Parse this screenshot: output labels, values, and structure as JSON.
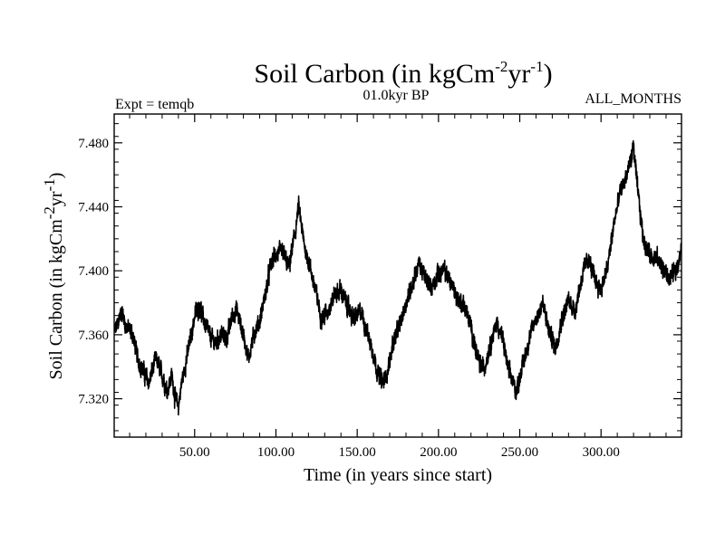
{
  "chart_data": {
    "type": "line",
    "title": {
      "text": "Soil Carbon (in kgCm",
      "sup1": "-2",
      "mid": "yr",
      "sup2": "-1",
      "end": ")"
    },
    "subtitle_left": "Expt = temqb",
    "subtitle_center": "01.0kyr BP",
    "subtitle_right": "ALL_MONTHS",
    "xlabel": "Time (in years since start)",
    "ylabel": {
      "text": "Soil Carbon (in kgCm",
      "sup1": "-2",
      "mid": "yr",
      "sup2": "-1",
      "end": ")"
    },
    "xlim": [
      0.5,
      349.5
    ],
    "ylim": [
      7.296,
      7.498
    ],
    "xticks": [
      50,
      100,
      150,
      200,
      250,
      300
    ],
    "xtick_labels": [
      "50.00",
      "100.00",
      "150.00",
      "200.00",
      "250.00",
      "300.00"
    ],
    "yticks": [
      7.32,
      7.36,
      7.4,
      7.44,
      7.48
    ],
    "ytick_labels": [
      "7.320",
      "7.360",
      "7.400",
      "7.440",
      "7.480"
    ],
    "grid": false,
    "series_color": "#000000",
    "series": [
      {
        "name": "",
        "sampling": "monthly",
        "x": [
          1,
          3,
          5,
          8,
          12,
          15,
          18,
          22,
          26,
          30,
          33,
          36,
          38,
          40,
          42,
          45,
          48,
          50,
          53,
          56,
          60,
          63,
          66,
          70,
          73,
          76,
          80,
          83,
          87,
          90,
          94,
          97,
          100,
          104,
          108,
          112,
          114,
          117,
          121,
          125,
          128,
          132,
          136,
          140,
          144,
          148,
          152,
          156,
          160,
          163,
          166,
          169,
          172,
          176,
          180,
          184,
          188,
          192,
          196,
          200,
          204,
          208,
          212,
          216,
          220,
          224,
          228,
          232,
          236,
          240,
          243,
          246,
          248,
          252,
          256,
          260,
          264,
          268,
          272,
          276,
          280,
          284,
          288,
          292,
          296,
          300,
          304,
          308,
          312,
          316,
          318,
          320,
          322,
          326,
          330,
          334,
          338,
          342,
          346,
          349
        ],
        "y": [
          7.362,
          7.368,
          7.375,
          7.365,
          7.36,
          7.345,
          7.338,
          7.33,
          7.345,
          7.335,
          7.325,
          7.335,
          7.32,
          7.315,
          7.33,
          7.345,
          7.36,
          7.372,
          7.378,
          7.368,
          7.358,
          7.355,
          7.36,
          7.358,
          7.372,
          7.375,
          7.36,
          7.345,
          7.362,
          7.368,
          7.388,
          7.405,
          7.41,
          7.412,
          7.402,
          7.425,
          7.44,
          7.418,
          7.402,
          7.385,
          7.37,
          7.375,
          7.385,
          7.388,
          7.378,
          7.37,
          7.375,
          7.362,
          7.348,
          7.335,
          7.33,
          7.338,
          7.355,
          7.365,
          7.38,
          7.392,
          7.405,
          7.395,
          7.39,
          7.398,
          7.4,
          7.392,
          7.382,
          7.378,
          7.365,
          7.345,
          7.338,
          7.355,
          7.368,
          7.355,
          7.338,
          7.33,
          7.325,
          7.342,
          7.358,
          7.37,
          7.38,
          7.362,
          7.352,
          7.37,
          7.382,
          7.375,
          7.395,
          7.408,
          7.395,
          7.388,
          7.402,
          7.43,
          7.45,
          7.46,
          7.468,
          7.478,
          7.455,
          7.42,
          7.41,
          7.408,
          7.402,
          7.395,
          7.4,
          7.412
        ]
      }
    ]
  }
}
